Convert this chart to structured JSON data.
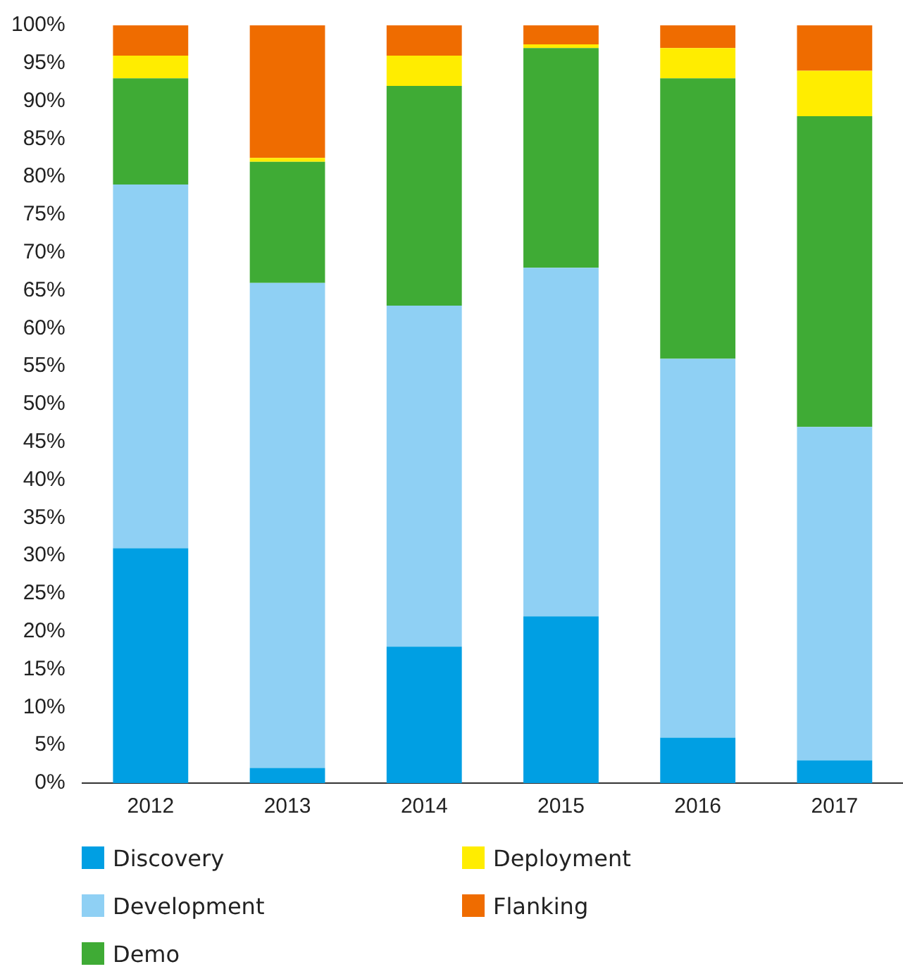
{
  "chart_data": {
    "type": "bar",
    "stacked": true,
    "categories": [
      "2012",
      "2013",
      "2014",
      "2015",
      "2016",
      "2017"
    ],
    "series": [
      {
        "name": "Discovery",
        "color": "#009fe3",
        "values": [
          31,
          2,
          18,
          22,
          6,
          3
        ]
      },
      {
        "name": "Development",
        "color": "#8fd0f4",
        "values": [
          48,
          64,
          45,
          46,
          50,
          44
        ]
      },
      {
        "name": "Demo",
        "color": "#3fab35",
        "values": [
          14,
          16,
          29,
          29,
          37,
          41
        ]
      },
      {
        "name": "Deployment",
        "color": "#ffed00",
        "values": [
          3,
          0.5,
          4,
          0.5,
          4,
          6
        ]
      },
      {
        "name": "Flanking",
        "color": "#ef6c00",
        "values": [
          4,
          17.5,
          4,
          2.5,
          3,
          6
        ]
      }
    ],
    "ylim": [
      0,
      100
    ],
    "yticks": [
      {
        "value": 0,
        "label": "0%"
      },
      {
        "value": 5,
        "label": "5%"
      },
      {
        "value": 10,
        "label": "10%"
      },
      {
        "value": 15,
        "label": "15%"
      },
      {
        "value": 20,
        "label": "20%"
      },
      {
        "value": 25,
        "label": "25%"
      },
      {
        "value": 30,
        "label": "30%"
      },
      {
        "value": 35,
        "label": "35%"
      },
      {
        "value": 40,
        "label": "40%"
      },
      {
        "value": 45,
        "label": "45%"
      },
      {
        "value": 50,
        "label": "50%"
      },
      {
        "value": 55,
        "label": "55%"
      },
      {
        "value": 60,
        "label": "60%"
      },
      {
        "value": 65,
        "label": "65%"
      },
      {
        "value": 70,
        "label": "70%"
      },
      {
        "value": 75,
        "label": "75%"
      },
      {
        "value": 80,
        "label": "80%"
      },
      {
        "value": 85,
        "label": "85%"
      },
      {
        "value": 90,
        "label": "90%"
      },
      {
        "value": 95,
        "label": "95%"
      },
      {
        "value": 100,
        "label": "100%"
      }
    ],
    "grid": false,
    "legend": "bottom"
  }
}
